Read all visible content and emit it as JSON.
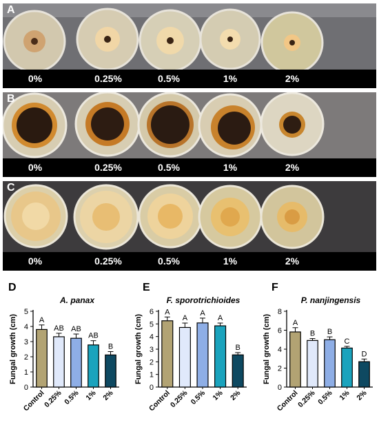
{
  "colors": {
    "control": "#b2a373",
    "p025": "#e0e9fb",
    "p05": "#8eaee6",
    "p1": "#1aa3bd",
    "p2": "#0e4961"
  },
  "photo_panels": [
    {
      "letter": "A",
      "labels": [
        "0%",
        "0.25%",
        "0.5%",
        "1%",
        "2%"
      ]
    },
    {
      "letter": "B",
      "labels": [
        "0%",
        "0.25%",
        "0.5%",
        "1%",
        "2%"
      ]
    },
    {
      "letter": "C",
      "labels": [
        "0%",
        "0.25%",
        "0.5%",
        "1%",
        "2%"
      ]
    }
  ],
  "chart_data": [
    {
      "type": "bar",
      "panel": "D",
      "title": "A. panax",
      "ylabel": "Fungal growth (cm)",
      "categories": [
        "Control",
        "0.25%",
        "0.5%",
        "1%",
        "2%"
      ],
      "values": [
        3.8,
        3.32,
        3.22,
        2.78,
        2.12
      ],
      "errors": [
        0.3,
        0.23,
        0.28,
        0.28,
        0.22
      ],
      "letters": [
        "A",
        "AB",
        "AB",
        "AB",
        "B"
      ],
      "ylim": [
        0,
        5
      ],
      "yticks": [
        "0",
        "1",
        "2",
        "3",
        "4",
        "5"
      ]
    },
    {
      "type": "bar",
      "panel": "E",
      "title": "F. sporotrichioides",
      "ylabel": "Fungal growth (cm)",
      "categories": [
        "Control",
        "0.25%",
        "0.5%",
        "1%",
        "2%"
      ],
      "values": [
        5.25,
        4.72,
        5.08,
        4.85,
        2.55
      ],
      "errors": [
        0.3,
        0.35,
        0.38,
        0.22,
        0.18
      ],
      "letters": [
        "A",
        "A",
        "A",
        "A",
        "B"
      ],
      "ylim": [
        0,
        6
      ],
      "yticks": [
        "0",
        "1",
        "2",
        "3",
        "4",
        "5",
        "6"
      ]
    },
    {
      "type": "bar",
      "panel": "F",
      "title": "P. nanjingensis",
      "ylabel": "Fungal growth (cm)",
      "categories": [
        "Control",
        "0.25%",
        "0.5%",
        "1%",
        "2%"
      ],
      "values": [
        5.82,
        4.92,
        5.0,
        4.12,
        2.68
      ],
      "errors": [
        0.45,
        0.2,
        0.3,
        0.18,
        0.28
      ],
      "letters": [
        "A",
        "B",
        "B",
        "C",
        "D"
      ],
      "ylim": [
        0,
        8
      ],
      "yticks": [
        "0",
        "2",
        "4",
        "6",
        "8"
      ]
    }
  ]
}
